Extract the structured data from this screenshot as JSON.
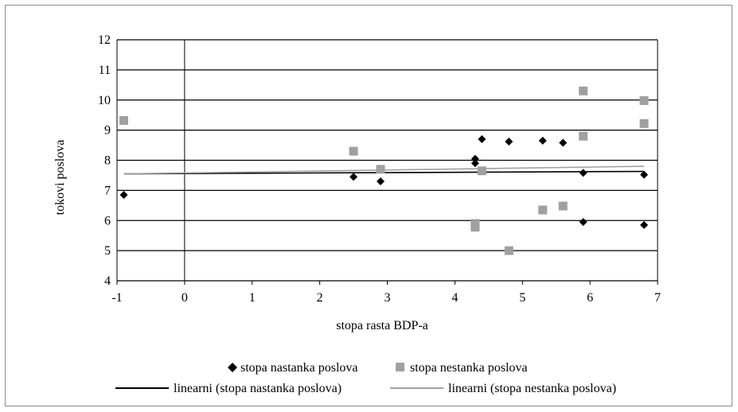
{
  "chart_data": {
    "type": "scatter",
    "title": "",
    "xlabel": "stopa rasta BDP-a",
    "ylabel": "tokovi poslova",
    "xlim": [
      -1,
      7
    ],
    "ylim": [
      4,
      12
    ],
    "x_ticks": [
      "-1",
      "0",
      "1",
      "2",
      "3",
      "4",
      "5",
      "6",
      "7"
    ],
    "y_ticks": [
      "4",
      "5",
      "6",
      "7",
      "8",
      "9",
      "10",
      "11",
      "12"
    ],
    "grid": "horizontal",
    "legend_position": "bottom",
    "series": [
      {
        "name": "stopa nastanka poslova",
        "marker": "diamond",
        "color": "#000000",
        "points": [
          {
            "x": -0.9,
            "y": 6.85
          },
          {
            "x": 2.5,
            "y": 7.45
          },
          {
            "x": 2.9,
            "y": 7.3
          },
          {
            "x": 4.3,
            "y": 8.05
          },
          {
            "x": 4.3,
            "y": 7.9
          },
          {
            "x": 4.4,
            "y": 8.7
          },
          {
            "x": 4.8,
            "y": 8.62
          },
          {
            "x": 5.3,
            "y": 8.65
          },
          {
            "x": 5.6,
            "y": 8.58
          },
          {
            "x": 5.9,
            "y": 7.58
          },
          {
            "x": 5.9,
            "y": 5.95
          },
          {
            "x": 6.8,
            "y": 7.52
          },
          {
            "x": 6.8,
            "y": 5.85
          }
        ]
      },
      {
        "name": "stopa nestanka poslova",
        "marker": "square",
        "color": "#a0a0a0",
        "points": [
          {
            "x": -0.9,
            "y": 9.32
          },
          {
            "x": 2.5,
            "y": 8.3
          },
          {
            "x": 2.9,
            "y": 7.7
          },
          {
            "x": 4.3,
            "y": 5.9
          },
          {
            "x": 4.3,
            "y": 5.78
          },
          {
            "x": 4.4,
            "y": 7.65
          },
          {
            "x": 4.8,
            "y": 5.0
          },
          {
            "x": 5.3,
            "y": 6.35
          },
          {
            "x": 5.6,
            "y": 6.48
          },
          {
            "x": 5.9,
            "y": 10.3
          },
          {
            "x": 5.9,
            "y": 8.8
          },
          {
            "x": 6.8,
            "y": 9.98
          },
          {
            "x": 6.8,
            "y": 9.22
          }
        ]
      }
    ],
    "trendlines": [
      {
        "name": "linearni (stopa nastanka poslova)",
        "color": "#000000",
        "x": [
          -0.9,
          6.8
        ],
        "y": [
          7.55,
          7.63
        ]
      },
      {
        "name": "linearni (stopa nestanka poslova)",
        "color": "#a0a0a0",
        "x": [
          -0.9,
          6.8
        ],
        "y": [
          7.55,
          7.8
        ]
      }
    ]
  }
}
